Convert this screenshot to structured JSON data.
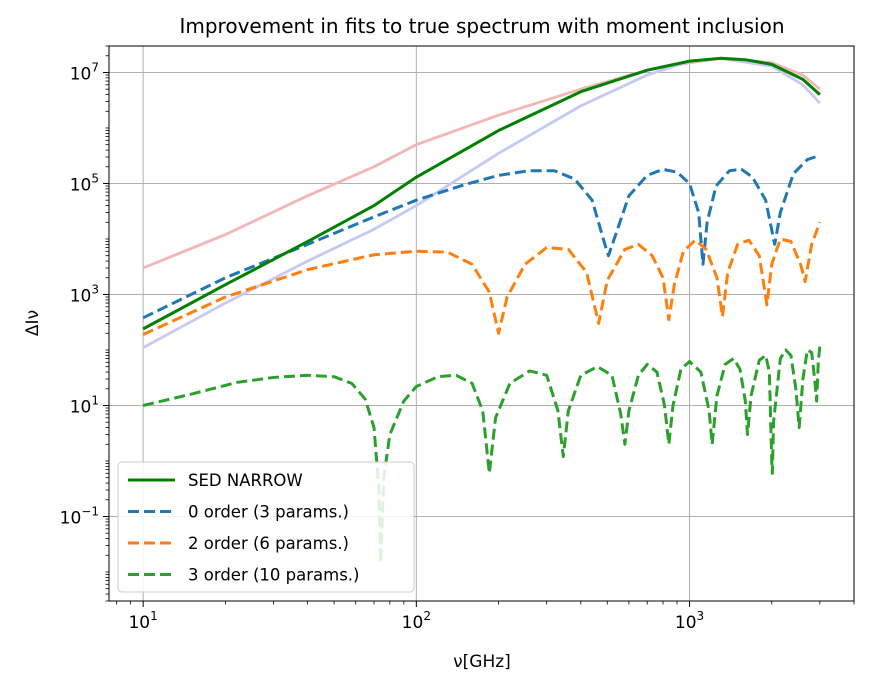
{
  "chart_data": {
    "type": "line",
    "title": "Improvement in fits to true spectrum with moment inclusion",
    "xlabel": "ν[GHz]",
    "ylabel": "ΔIν",
    "xscale": "log",
    "yscale": "log",
    "xlim": [
      7.5,
      4000
    ],
    "ylim": [
      0.003,
      30000000
    ],
    "grid": true,
    "legend_position": "lower-left",
    "x_ticks": [
      {
        "value": 10,
        "base": "10",
        "exp": "1"
      },
      {
        "value": 100,
        "base": "10",
        "exp": "2"
      },
      {
        "value": 1000,
        "base": "10",
        "exp": "3"
      }
    ],
    "y_ticks": [
      {
        "value": 0.1,
        "base": "10",
        "exp": "−1"
      },
      {
        "value": 10,
        "base": "10",
        "exp": "1"
      },
      {
        "value": 1000,
        "base": "10",
        "exp": "3"
      },
      {
        "value": 100000,
        "base": "10",
        "exp": "5"
      },
      {
        "value": 10000000,
        "base": "10",
        "exp": "7"
      }
    ],
    "background_series": [
      {
        "color": "#f4b5b5",
        "points": [
          [
            10,
            3000
          ],
          [
            20,
            12000
          ],
          [
            40,
            60000
          ],
          [
            70,
            200000
          ],
          [
            100,
            500000
          ],
          [
            200,
            1700000
          ],
          [
            400,
            5000000
          ],
          [
            700,
            11000000
          ],
          [
            1000,
            15000000
          ],
          [
            1300,
            18000000
          ],
          [
            2000,
            15000000
          ],
          [
            2600,
            9000000
          ],
          [
            3000,
            5000000
          ]
        ]
      },
      {
        "color": "#c8c8f2",
        "points": [
          [
            10,
            110
          ],
          [
            20,
            700
          ],
          [
            40,
            4000
          ],
          [
            70,
            15000
          ],
          [
            100,
            40000
          ],
          [
            200,
            350000
          ],
          [
            400,
            2500000
          ],
          [
            700,
            9000000
          ],
          [
            1000,
            16000000
          ],
          [
            1300,
            18000000
          ],
          [
            2000,
            13000000
          ],
          [
            2600,
            6000000
          ],
          [
            3000,
            2800000
          ]
        ]
      }
    ],
    "series": [
      {
        "name": "SED NARROW",
        "color": "#008000",
        "style": "solid",
        "points": [
          [
            10,
            240
          ],
          [
            20,
            1500
          ],
          [
            40,
            9000
          ],
          [
            70,
            40000
          ],
          [
            100,
            130000
          ],
          [
            200,
            900000
          ],
          [
            400,
            4500000
          ],
          [
            700,
            11000000
          ],
          [
            1000,
            16000000
          ],
          [
            1300,
            18000000
          ],
          [
            1600,
            17000000
          ],
          [
            2000,
            14000000
          ],
          [
            2600,
            7500000
          ],
          [
            3000,
            4000000
          ]
        ]
      },
      {
        "name": "0 order (3 params.)",
        "color": "#1f77b4",
        "style": "dashed",
        "points": [
          [
            10,
            380
          ],
          [
            20,
            2000
          ],
          [
            40,
            8000
          ],
          [
            70,
            25000
          ],
          [
            100,
            50000
          ],
          [
            150,
            95000
          ],
          [
            200,
            140000
          ],
          [
            260,
            170000
          ],
          [
            320,
            170000
          ],
          [
            380,
            120000
          ],
          [
            440,
            50000
          ],
          [
            490,
            8000
          ],
          [
            505,
            5000
          ],
          [
            530,
            10000
          ],
          [
            600,
            60000
          ],
          [
            700,
            140000
          ],
          [
            800,
            180000
          ],
          [
            900,
            160000
          ],
          [
            1000,
            100000
          ],
          [
            1080,
            30000
          ],
          [
            1120,
            3500
          ],
          [
            1160,
            20000
          ],
          [
            1250,
            90000
          ],
          [
            1400,
            170000
          ],
          [
            1550,
            180000
          ],
          [
            1700,
            130000
          ],
          [
            1900,
            50000
          ],
          [
            2050,
            8000
          ],
          [
            2150,
            30000
          ],
          [
            2400,
            150000
          ],
          [
            2700,
            270000
          ],
          [
            3000,
            320000
          ]
        ]
      },
      {
        "name": "2 order (6 params.)",
        "color": "#ff7f0e",
        "style": "dashed",
        "points": [
          [
            10,
            190
          ],
          [
            20,
            900
          ],
          [
            40,
            2800
          ],
          [
            70,
            5200
          ],
          [
            100,
            6000
          ],
          [
            130,
            5800
          ],
          [
            160,
            3500
          ],
          [
            185,
            1100
          ],
          [
            200,
            200
          ],
          [
            215,
            900
          ],
          [
            250,
            3500
          ],
          [
            300,
            7000
          ],
          [
            360,
            6500
          ],
          [
            420,
            2500
          ],
          [
            465,
            300
          ],
          [
            500,
            1800
          ],
          [
            580,
            6500
          ],
          [
            650,
            8000
          ],
          [
            730,
            5000
          ],
          [
            800,
            2000
          ],
          [
            840,
            350
          ],
          [
            880,
            1500
          ],
          [
            950,
            6000
          ],
          [
            1050,
            9500
          ],
          [
            1150,
            6500
          ],
          [
            1260,
            2000
          ],
          [
            1320,
            400
          ],
          [
            1380,
            2500
          ],
          [
            1500,
            8000
          ],
          [
            1650,
            9500
          ],
          [
            1800,
            5000
          ],
          [
            1920,
            650
          ],
          [
            2000,
            3500
          ],
          [
            2150,
            10000
          ],
          [
            2350,
            9000
          ],
          [
            2550,
            3500
          ],
          [
            2650,
            1700
          ],
          [
            2800,
            8000
          ],
          [
            3000,
            20000
          ]
        ]
      },
      {
        "name": "3 order (10 params.)",
        "color": "#2ca02c",
        "style": "dashed",
        "points": [
          [
            10,
            10
          ],
          [
            15,
            16
          ],
          [
            22,
            26
          ],
          [
            30,
            32
          ],
          [
            40,
            35
          ],
          [
            50,
            33
          ],
          [
            58,
            25
          ],
          [
            65,
            13
          ],
          [
            70,
            4
          ],
          [
            73,
            0.3
          ],
          [
            74,
            0.015
          ],
          [
            76,
            0.5
          ],
          [
            80,
            3
          ],
          [
            90,
            12
          ],
          [
            100,
            22
          ],
          [
            120,
            33
          ],
          [
            140,
            35
          ],
          [
            160,
            25
          ],
          [
            175,
            8
          ],
          [
            185,
            0.6
          ],
          [
            195,
            6
          ],
          [
            220,
            25
          ],
          [
            260,
            42
          ],
          [
            300,
            35
          ],
          [
            330,
            8
          ],
          [
            345,
            1.2
          ],
          [
            360,
            8
          ],
          [
            400,
            35
          ],
          [
            460,
            50
          ],
          [
            520,
            35
          ],
          [
            560,
            7
          ],
          [
            580,
            2
          ],
          [
            600,
            8
          ],
          [
            650,
            35
          ],
          [
            700,
            55
          ],
          [
            760,
            40
          ],
          [
            810,
            10
          ],
          [
            840,
            2
          ],
          [
            870,
            10
          ],
          [
            930,
            45
          ],
          [
            1000,
            62
          ],
          [
            1100,
            40
          ],
          [
            1180,
            8
          ],
          [
            1210,
            2
          ],
          [
            1260,
            15
          ],
          [
            1350,
            55
          ],
          [
            1450,
            70
          ],
          [
            1530,
            45
          ],
          [
            1600,
            12
          ],
          [
            1630,
            3
          ],
          [
            1680,
            15
          ],
          [
            1800,
            65
          ],
          [
            1900,
            80
          ],
          [
            1960,
            40
          ],
          [
            2000,
            1
          ],
          [
            2010,
            0.6
          ],
          [
            2030,
            5
          ],
          [
            2150,
            70
          ],
          [
            2250,
            100
          ],
          [
            2350,
            80
          ],
          [
            2450,
            20
          ],
          [
            2520,
            4
          ],
          [
            2600,
            30
          ],
          [
            2700,
            100
          ],
          [
            2800,
            90
          ],
          [
            2870,
            30
          ],
          [
            2920,
            12
          ],
          [
            2960,
            60
          ],
          [
            3000,
            120
          ]
        ]
      }
    ]
  }
}
